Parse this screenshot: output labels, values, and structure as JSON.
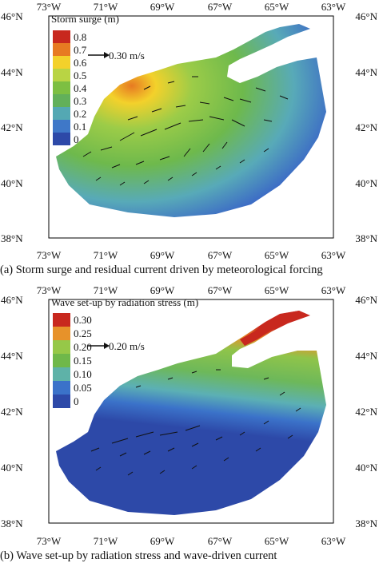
{
  "panels": [
    {
      "id": "a",
      "colorbar_title": "Storm surge (m)",
      "colorbar_labels": [
        "0.8",
        "0.7",
        "0.6",
        "0.5",
        "0.4",
        "0.3",
        "0.2",
        "0.1",
        "0"
      ],
      "colorbar_colors": [
        "#c8281e",
        "#e77a22",
        "#f3d12b",
        "#b9d444",
        "#7dbf42",
        "#62b05a",
        "#54a8b3",
        "#3f78c8",
        "#2d49a8"
      ],
      "reference_vector": "0.30 m/s",
      "caption": "(a) Storm surge and residual current driven by meteorological forcing"
    },
    {
      "id": "b",
      "colorbar_title": "Wave set-up by radiation stress (m)",
      "colorbar_labels": [
        "0.30",
        "0.25",
        "0.20",
        "0.15",
        "0.10",
        "0.05",
        "0"
      ],
      "colorbar_colors": [
        "#c8281e",
        "#e7922a",
        "#96c848",
        "#6fb84a",
        "#5eb2a8",
        "#3b72c9",
        "#2d49a8"
      ],
      "reference_vector": "0.20 m/s",
      "caption": "(b) Wave set-up by radiation stress and wave-driven current"
    }
  ],
  "axes": {
    "lon_labels": [
      "73°W",
      "71°W",
      "69°W",
      "67°W",
      "65°W",
      "63°W"
    ],
    "lat_labels": [
      "46°N",
      "44°N",
      "42°N",
      "40°N",
      "38°N"
    ]
  }
}
